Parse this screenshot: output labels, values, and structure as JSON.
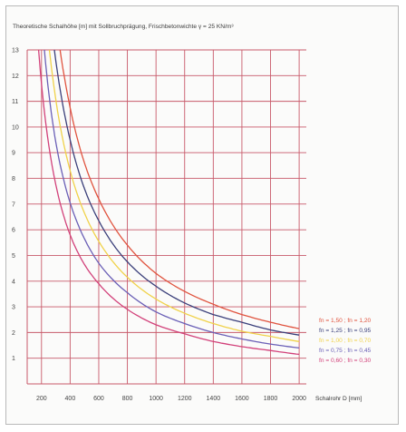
{
  "chart_data": {
    "type": "line",
    "title": "Theoretische Schalhöhe [m] mit Sollbruchprägung, Frischbetonwichte γ = 25 KN/m³",
    "xlabel": "Schalrohr D [mm]",
    "ylabel": "",
    "x_ticks": [
      "200",
      "400",
      "600",
      "800",
      "1000",
      "1200",
      "1400",
      "1600",
      "1800",
      "2000"
    ],
    "y_ticks": [
      "1",
      "2",
      "3",
      "4",
      "5",
      "6",
      "7",
      "8",
      "9",
      "10",
      "11",
      "12",
      "13"
    ],
    "xlim": [
      100,
      2050
    ],
    "ylim": [
      0,
      13
    ],
    "grid": true,
    "legend_position": "right",
    "series": [
      {
        "name": "fn = 1,50 ; fn = 1,20",
        "color": "#e0533e",
        "k": 13.0,
        "x": [
          330,
          400,
          500,
          600,
          800,
          1000,
          1200,
          1400,
          1600,
          1800,
          2000
        ],
        "values": [
          13.0,
          10.75,
          8.6,
          7.2,
          5.4,
          4.3,
          3.6,
          3.1,
          2.7,
          2.4,
          2.15
        ]
      },
      {
        "name": "fn = 1,25 ; fn = 0,95",
        "color": "#3a3f7a",
        "k": 11.5,
        "x": [
          290,
          400,
          500,
          600,
          800,
          1000,
          1200,
          1400,
          1600,
          1800,
          2000
        ],
        "values": [
          13.0,
          9.5,
          7.6,
          6.35,
          4.75,
          3.8,
          3.15,
          2.7,
          2.4,
          2.1,
          1.9
        ]
      },
      {
        "name": "fn = 1,00 ; fn = 0,70",
        "color": "#f0d24a",
        "k": 10.0,
        "x": [
          255,
          400,
          500,
          600,
          800,
          1000,
          1200,
          1400,
          1600,
          1800,
          2000
        ],
        "values": [
          13.0,
          8.3,
          6.65,
          5.55,
          4.15,
          3.3,
          2.75,
          2.35,
          2.05,
          1.85,
          1.65
        ]
      },
      {
        "name": "fn = 0,75 ; fn = 0,45",
        "color": "#6a5fb6",
        "k": 8.5,
        "x": [
          220,
          300,
          400,
          500,
          600,
          800,
          1000,
          1200,
          1400,
          1600,
          1800,
          2000
        ],
        "values": [
          13.0,
          9.4,
          7.05,
          5.65,
          4.7,
          3.55,
          2.8,
          2.35,
          2.0,
          1.75,
          1.55,
          1.4
        ]
      },
      {
        "name": "fn = 0,60 ; fn = 0,30",
        "color": "#d2417a",
        "k": 7.0,
        "x": [
          180,
          300,
          400,
          500,
          600,
          800,
          1000,
          1200,
          1400,
          1600,
          1800,
          2000
        ],
        "values": [
          13.0,
          7.75,
          5.8,
          4.65,
          3.9,
          2.9,
          2.3,
          1.95,
          1.65,
          1.45,
          1.3,
          1.15
        ]
      }
    ]
  }
}
